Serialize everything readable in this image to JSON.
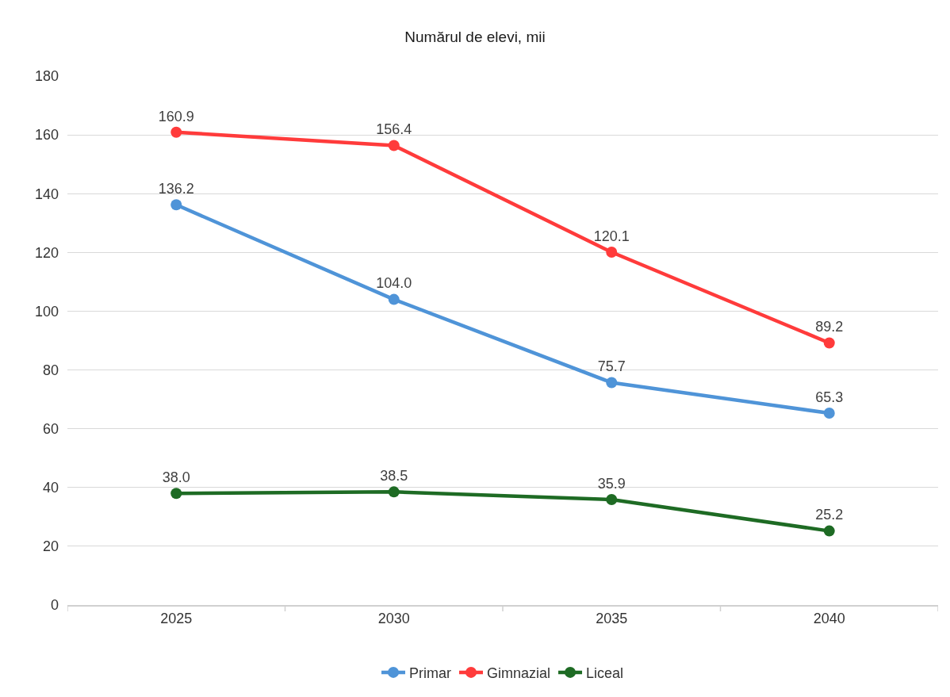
{
  "chart_data": {
    "type": "line",
    "title": "Numărul de elevi, mii",
    "categories": [
      "2025",
      "2030",
      "2035",
      "2040"
    ],
    "series": [
      {
        "name": "Primar",
        "color": "#4f94d8",
        "values": [
          136.2,
          104.0,
          75.7,
          65.3
        ],
        "value_labels": [
          "136.2",
          "104.0",
          "75.7",
          "65.3"
        ]
      },
      {
        "name": "Gimnazial",
        "color": "#ff3b3b",
        "values": [
          160.9,
          156.4,
          120.1,
          89.2
        ],
        "value_labels": [
          "160.9",
          "156.4",
          "120.1",
          "89.2"
        ]
      },
      {
        "name": "Liceal",
        "color": "#1e6b24",
        "values": [
          38.0,
          38.5,
          35.9,
          25.2
        ],
        "value_labels": [
          "38.0",
          "38.5",
          "35.9",
          "25.2"
        ]
      }
    ],
    "ylim": [
      0,
      180
    ],
    "yticks": [
      0,
      20,
      40,
      60,
      80,
      100,
      120,
      140,
      160,
      180
    ],
    "grid": "y",
    "legend": "bottom",
    "marker": "circle",
    "line_style": "solid"
  }
}
